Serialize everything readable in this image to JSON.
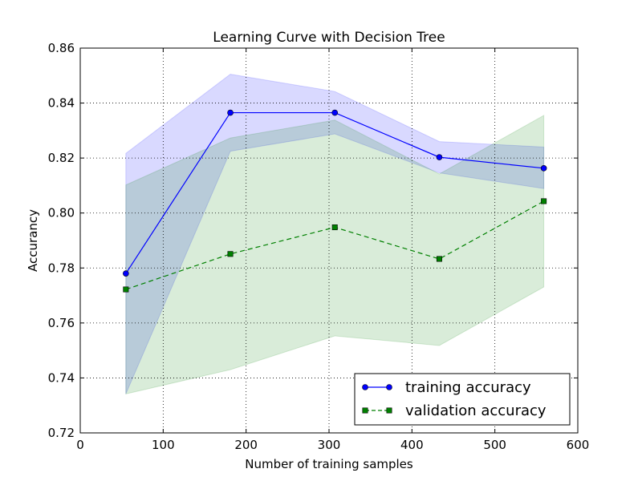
{
  "chart_data": {
    "type": "line",
    "title": "Learning Curve with Decision Tree",
    "xlabel": "Number of training samples",
    "ylabel": "Accurancy",
    "xlim": [
      0,
      600
    ],
    "ylim": [
      0.72,
      0.86
    ],
    "xticks": [
      0,
      100,
      200,
      300,
      400,
      500,
      600
    ],
    "yticks": [
      0.72,
      0.74,
      0.76,
      0.78,
      0.8,
      0.82,
      0.84,
      0.86
    ],
    "xtick_labels": [
      "0",
      "100",
      "200",
      "300",
      "400",
      "500",
      "600"
    ],
    "ytick_labels": [
      "0.72",
      "0.74",
      "0.76",
      "0.78",
      "0.80",
      "0.82",
      "0.84",
      "0.86"
    ],
    "grid": true,
    "legend_position": "lower-right",
    "x": [
      55,
      181,
      307,
      433,
      559
    ],
    "series": [
      {
        "name": "training accuracy",
        "values": [
          0.778,
          0.8365,
          0.8365,
          0.8203,
          0.8163
        ],
        "band_upper": [
          0.8217,
          0.8505,
          0.8442,
          0.826,
          0.824
        ],
        "band_lower": [
          0.7342,
          0.8225,
          0.8288,
          0.8146,
          0.8089
        ],
        "color": "#0000ff",
        "band_color": "#0000ff",
        "line_style": "solid",
        "marker": "circle"
      },
      {
        "name": "validation accuracy",
        "values": [
          0.7722,
          0.7851,
          0.7948,
          0.7833,
          0.8043
        ],
        "band_upper": [
          0.8102,
          0.8273,
          0.8338,
          0.8142,
          0.8355
        ],
        "band_lower": [
          0.7342,
          0.743,
          0.7553,
          0.7518,
          0.7731
        ],
        "color": "#008000",
        "band_color": "#008000",
        "line_style": "dashed",
        "marker": "square"
      }
    ]
  }
}
